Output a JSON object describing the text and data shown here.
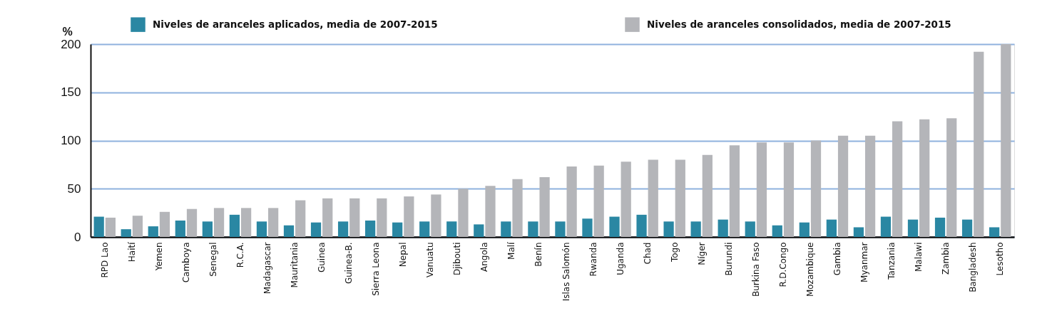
{
  "chart_data": {
    "type": "bar",
    "categories": [
      "RPD Lao",
      "Haití",
      "Yemen",
      "Camboya",
      "Senegal",
      "R.C.A.",
      "Madagascar",
      "Mauritania",
      "Guinea",
      "Guinea-B.",
      "Sierra Leona",
      "Nepal",
      "Vanuatu",
      "Djibouti",
      "Angola",
      "Malí",
      "Benín",
      "Islas Salomón",
      "Rwanda",
      "Uganda",
      "Chad",
      "Togo",
      "Níger",
      "Burundi",
      "Burkina Faso",
      "R.D.Congo",
      "Mozambique",
      "Gambia",
      "Myanmar",
      "Tanzania",
      "Malawi",
      "Zambia",
      "Bangladesh",
      "Lesotho"
    ],
    "series": [
      {
        "name": "Niveles de aranceles aplicados, media de 2007-2015",
        "color": "#2a87a3",
        "values": [
          21,
          8,
          11,
          17,
          16,
          23,
          16,
          12,
          15,
          16,
          17,
          15,
          16,
          16,
          13,
          16,
          16,
          16,
          19,
          21,
          23,
          16,
          16,
          18,
          16,
          12,
          15,
          18,
          10,
          21,
          18,
          20,
          18,
          10
        ]
      },
      {
        "name": "Niveles de aranceles consolidados, media de 2007-2015",
        "color": "#b4b5b9",
        "values": [
          20,
          22,
          26,
          29,
          30,
          30,
          30,
          38,
          40,
          40,
          40,
          42,
          44,
          50,
          53,
          60,
          62,
          73,
          74,
          78,
          80,
          80,
          85,
          95,
          98,
          98,
          100,
          105,
          105,
          120,
          122,
          123,
          192,
          200
        ]
      }
    ],
    "ylabel": "%",
    "ylim": [
      0,
      200
    ],
    "yticks": [
      0,
      50,
      100,
      150,
      200
    ],
    "grid": "y",
    "legend": "top"
  }
}
